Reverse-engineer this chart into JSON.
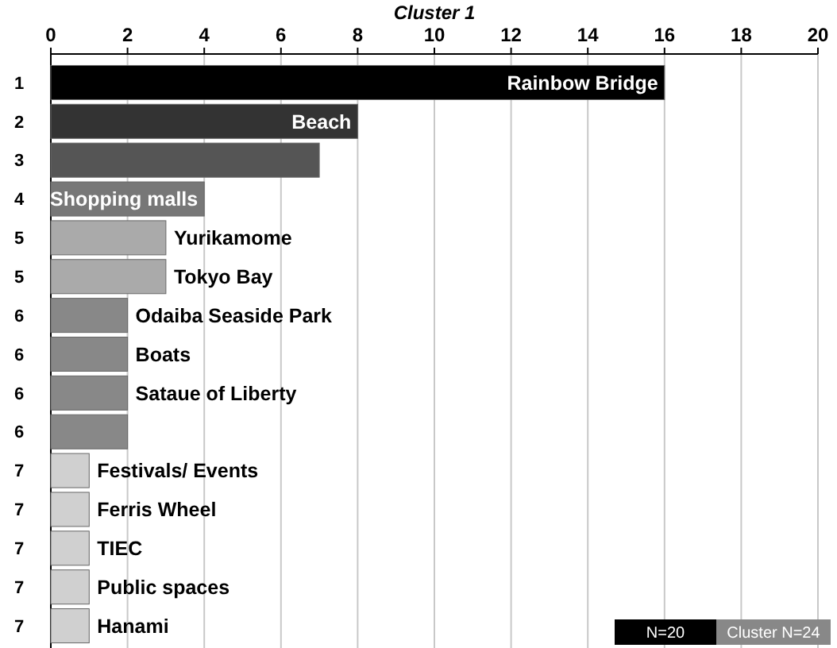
{
  "chart_data": {
    "type": "bar",
    "orientation": "horizontal",
    "title": "Cluster 1",
    "categories": [
      "Rainbow Bridge",
      "Beach",
      null,
      "Shopping malls",
      "Yurikamome",
      "Tokyo Bay",
      "Odaiba Seaside Park",
      "Boats",
      "Sataue of Liberty",
      null,
      "Festivals/ Events",
      "Ferris Wheel",
      "TIEC",
      "Public spaces",
      "Hanami"
    ],
    "values": [
      16,
      8,
      7,
      4,
      3,
      3,
      2,
      2,
      2,
      2,
      1,
      1,
      1,
      1,
      1
    ],
    "colors": [
      "#000000",
      "#333333",
      "#555555",
      "#777777",
      "#aaaaaa",
      "#aaaaaa",
      "#888888",
      "#888888",
      "#888888",
      "#888888",
      "#d0d0d0",
      "#d0d0d0",
      "#d0d0d0",
      "#d0d0d0",
      "#d0d0d0"
    ],
    "xlim": [
      0,
      20
    ],
    "xticks": [
      0,
      2,
      4,
      6,
      8,
      10,
      12,
      14,
      16,
      18,
      20
    ],
    "grid": "x",
    "annotations": [
      "1",
      "2",
      "3",
      "4",
      "5",
      "5",
      "6",
      "6",
      "6",
      "6",
      "7",
      "7",
      "7",
      "7",
      "7",
      "N=20",
      "Cluster N=24"
    ]
  }
}
